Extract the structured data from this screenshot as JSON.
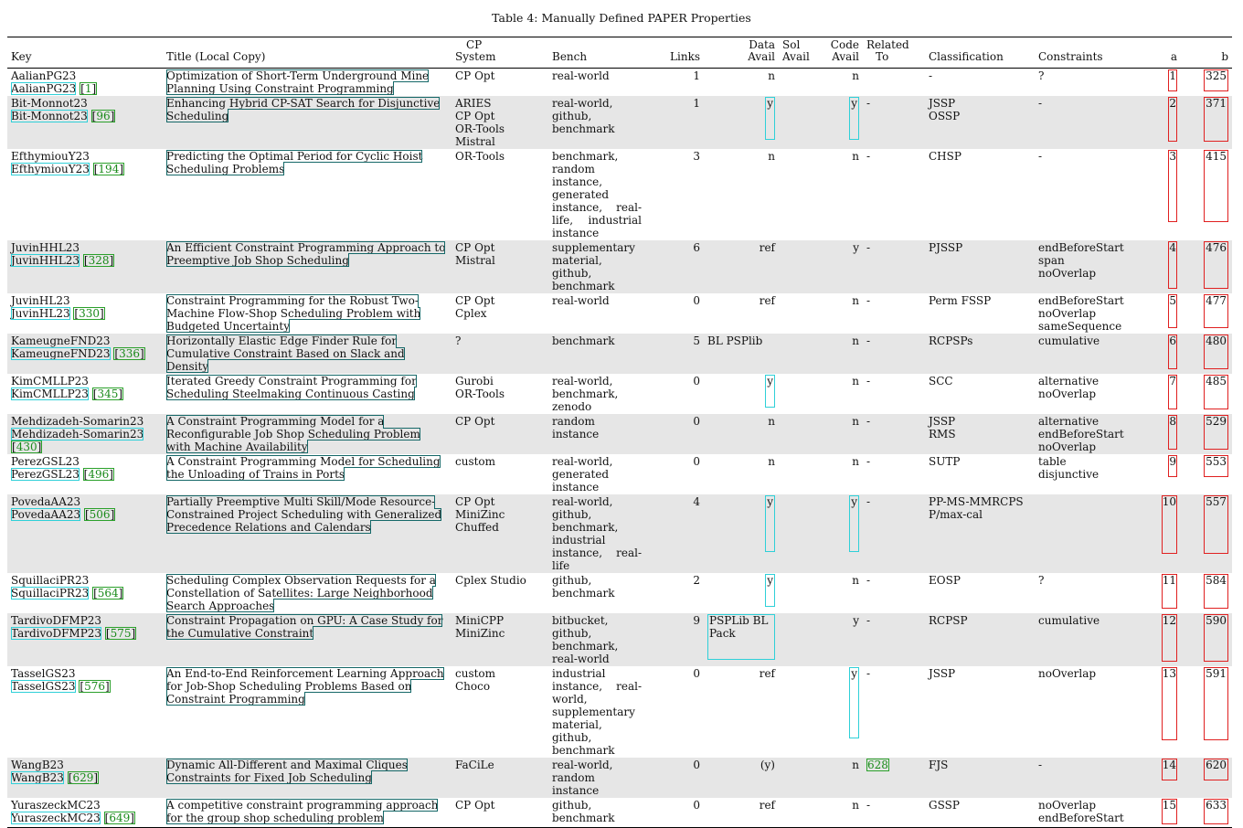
{
  "caption": "Table 4: Manually Defined PAPER Properties",
  "headers": {
    "key": "Key",
    "title": "Title (Local Copy)",
    "cp": [
      "CP",
      "System"
    ],
    "bench": "Bench",
    "links": "Links",
    "data": [
      "Data",
      "Avail"
    ],
    "sol": [
      "Sol",
      "Avail"
    ],
    "code": [
      "Code",
      "Avail"
    ],
    "related": [
      "Related",
      "To"
    ],
    "classification": "Classification",
    "constraints": "Constraints",
    "a": "a",
    "b": "b"
  },
  "rows": [
    {
      "key": "AalianPG23",
      "ref": "1",
      "title": "Optimization of Short-Term Underground Mine Planning Using Constraint Programming",
      "cp": [
        "CP Opt"
      ],
      "bench": "real-world",
      "links": "1",
      "data": "n",
      "sol": "",
      "code": "n",
      "related": "",
      "classification": [
        "-"
      ],
      "constraints": [
        "?"
      ],
      "a": "1",
      "b": "325"
    },
    {
      "key": "Bit-Monnot23",
      "ref": "96",
      "title": "Enhancing Hybrid CP-SAT Search for Disjunctive Scheduling",
      "cp": [
        "ARIES",
        "CP Opt",
        "OR-Tools",
        "Mistral"
      ],
      "bench": "real-world, github, benchmark",
      "links": "1",
      "data": "y",
      "sol": "",
      "code": "y",
      "related": "-",
      "classification": [
        "JSSP",
        "OSSP"
      ],
      "constraints": [
        "-"
      ],
      "a": "2",
      "b": "371"
    },
    {
      "key": "EfthymiouY23",
      "ref": "194",
      "title": "Predicting the Optimal Period for Cyclic Hoist Scheduling Problems",
      "cp": [
        "OR-Tools"
      ],
      "bench": "benchmark, random instance, generated instance, real-life, industrial instance",
      "links": "3",
      "data": "n",
      "sol": "",
      "code": "n",
      "related": "-",
      "classification": [
        "CHSP"
      ],
      "constraints": [
        "-"
      ],
      "a": "3",
      "b": "415"
    },
    {
      "key": "JuvinHHL23",
      "ref": "328",
      "title": "An Efficient Constraint Programming Approach to Preemptive Job Shop Scheduling",
      "cp": [
        "CP Opt",
        "Mistral"
      ],
      "bench": "supplementary material, github, benchmark",
      "links": "6",
      "data": "ref",
      "sol": "",
      "code": "y",
      "related": "-",
      "classification": [
        "PJSSP"
      ],
      "constraints": [
        "endBeforeStart",
        "span",
        "noOverlap"
      ],
      "a": "4",
      "b": "476"
    },
    {
      "key": "JuvinHL23",
      "ref": "330",
      "title": "Constraint Programming for the Robust Two-Machine Flow-Shop Scheduling Problem with Budgeted Uncertainty",
      "cp": [
        "CP Opt",
        "Cplex"
      ],
      "bench": "real-world",
      "links": "0",
      "data": "ref",
      "sol": "",
      "code": "n",
      "related": "-",
      "classification": [
        "Perm FSSP"
      ],
      "constraints": [
        "endBeforeStart",
        "noOverlap",
        "sameSequence"
      ],
      "a": "5",
      "b": "477"
    },
    {
      "key": "KameugneFND23",
      "ref": "336",
      "title": "Horizontally Elastic Edge Finder Rule for Cumulative Constraint Based on Slack and Density",
      "cp": [
        "?"
      ],
      "bench": "benchmark",
      "links": "5",
      "data": "BL PSPlib",
      "sol": "",
      "code": "n",
      "related": "-",
      "classification": [
        "RCPSPs"
      ],
      "constraints": [
        "cumulative"
      ],
      "a": "6",
      "b": "480"
    },
    {
      "key": "KimCMLLP23",
      "ref": "345",
      "title": "Iterated Greedy Constraint Programming for Scheduling Steelmaking Continuous Casting",
      "cp": [
        "Gurobi",
        "OR-Tools"
      ],
      "bench": "real-world, benchmark, zenodo",
      "links": "0",
      "data": "y",
      "sol": "",
      "code": "n",
      "related": "-",
      "classification": [
        "SCC"
      ],
      "constraints": [
        "alternative",
        "noOverlap"
      ],
      "a": "7",
      "b": "485"
    },
    {
      "key": "Mehdizadeh-Somarin23",
      "ref": "430",
      "title": "A Constraint Programming Model for a Reconfigurable Job Shop Scheduling Problem with Machine Availability",
      "cp": [
        "CP Opt"
      ],
      "bench": "random instance",
      "links": "0",
      "data": "n",
      "sol": "",
      "code": "n",
      "related": "-",
      "classification": [
        "JSSP",
        "RMS"
      ],
      "constraints": [
        "alternative",
        "endBeforeStart",
        "noOverlap"
      ],
      "a": "8",
      "b": "529"
    },
    {
      "key": "PerezGSL23",
      "ref": "496",
      "title": "A Constraint Programming Model for Scheduling the Unloading of Trains in Ports",
      "cp": [
        "custom"
      ],
      "bench": "real-world, generated instance",
      "links": "0",
      "data": "n",
      "sol": "",
      "code": "n",
      "related": "-",
      "classification": [
        "SUTP"
      ],
      "constraints": [
        "table",
        "disjunctive"
      ],
      "a": "9",
      "b": "553"
    },
    {
      "key": "PovedaAA23",
      "ref": "506",
      "title": "Partially Preemptive Multi Skill/Mode Resource-Constrained Project Scheduling with Generalized Precedence Relations and Calendars",
      "cp": [
        "CP Opt",
        "MiniZinc",
        "Chuffed"
      ],
      "bench": "real-world, github, benchmark, industrial instance, real-life",
      "links": "4",
      "data": "y",
      "sol": "",
      "code": "y",
      "related": "-",
      "classification": [
        "PP-MS-MMRCPSP/max-cal"
      ],
      "constraints": [
        ""
      ],
      "a": "10",
      "b": "557"
    },
    {
      "key": "SquillaciPR23",
      "ref": "564",
      "title": "Scheduling Complex Observation Requests for a Constellation of Satellites: Large Neighborhood Search Approaches",
      "cp": [
        "Cplex Studio"
      ],
      "bench": "github, benchmark",
      "links": "2",
      "data": "y",
      "sol": "",
      "code": "n",
      "related": "-",
      "classification": [
        "EOSP"
      ],
      "constraints": [
        "?"
      ],
      "a": "11",
      "b": "584"
    },
    {
      "key": "TardivoDFMP23",
      "ref": "575",
      "title": "Constraint Propagation on GPU: A Case Study for the Cumulative Constraint",
      "cp": [
        "MiniCPP",
        "MiniZinc"
      ],
      "bench": "bitbucket, github, benchmark, real-world",
      "links": "9",
      "data": "PSPLib BL Pack",
      "sol": "",
      "code": "y",
      "related": "-",
      "classification": [
        "RCPSP"
      ],
      "constraints": [
        "cumulative"
      ],
      "a": "12",
      "b": "590"
    },
    {
      "key": "TasselGS23",
      "ref": "576",
      "title": "An End-to-End Reinforcement Learning Approach for Job-Shop Scheduling Problems Based on Constraint Programming",
      "cp": [
        "custom",
        "Choco"
      ],
      "bench": "industrial instance, real-world, supplementary material, github, benchmark",
      "links": "0",
      "data": "ref",
      "sol": "",
      "code": "y",
      "related": "-",
      "classification": [
        "JSSP"
      ],
      "constraints": [
        "noOverlap"
      ],
      "a": "13",
      "b": "591"
    },
    {
      "key": "WangB23",
      "ref": "629",
      "title": "Dynamic All-Different and Maximal Cliques Constraints for Fixed Job Scheduling",
      "cp": [
        "FaCiLe"
      ],
      "bench": "real-world, random instance",
      "links": "0",
      "data": "(y)",
      "sol": "",
      "code": "n",
      "related": "628",
      "classification": [
        "FJS"
      ],
      "constraints": [
        "-"
      ],
      "a": "14",
      "b": "620"
    },
    {
      "key": "YuraszeckMC23",
      "ref": "649",
      "title": "A competitive constraint programming approach for the group shop scheduling problem",
      "cp": [
        "CP Opt"
      ],
      "bench": "github, benchmark",
      "links": "0",
      "data": "ref",
      "sol": "",
      "code": "n",
      "related": "-",
      "classification": [
        "GSSP"
      ],
      "constraints": [
        "noOverlap",
        "endBeforeStart"
      ],
      "a": "15",
      "b": "633"
    }
  ]
}
